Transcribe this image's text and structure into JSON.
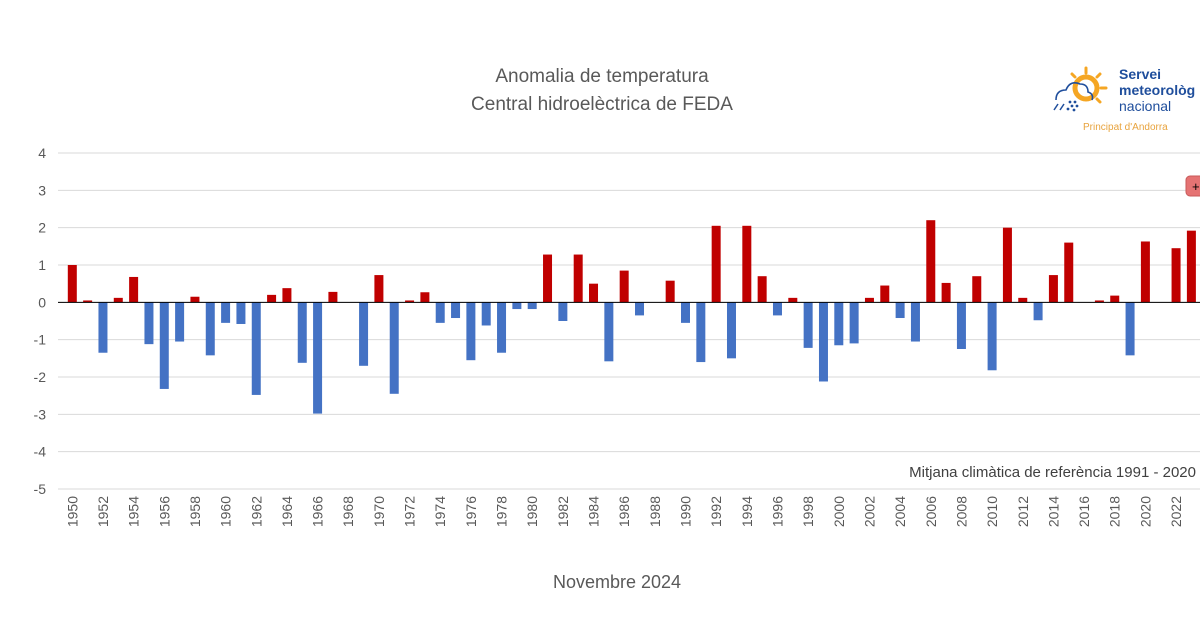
{
  "chart_data": {
    "type": "bar",
    "title": "Anomalia de temperatura",
    "subtitle": "Central hidroelèctrica de FEDA",
    "xlabel": "",
    "ylabel": "",
    "footer": "Novembre 2024",
    "note": "Mitjana climàtica de referència 1991 - 2020",
    "ylim": [
      -5,
      4
    ],
    "yticks": [
      "4",
      "3",
      "2",
      "1",
      "0",
      "-1",
      "-2",
      "-3",
      "-4",
      "-5"
    ],
    "grid": true,
    "colors": {
      "positive": "#C00000",
      "negative": "#4472C4",
      "grid": "#D9D9D9",
      "axis": "#000000"
    },
    "categories": [
      1950,
      1951,
      1952,
      1953,
      1954,
      1955,
      1956,
      1957,
      1958,
      1959,
      1960,
      1961,
      1962,
      1963,
      1964,
      1965,
      1966,
      1967,
      1968,
      1969,
      1970,
      1971,
      1972,
      1973,
      1974,
      1975,
      1976,
      1977,
      1978,
      1979,
      1980,
      1981,
      1982,
      1983,
      1984,
      1985,
      1986,
      1987,
      1988,
      1989,
      1990,
      1991,
      1992,
      1993,
      1994,
      1995,
      1996,
      1997,
      1998,
      1999,
      2000,
      2001,
      2002,
      2003,
      2004,
      2005,
      2006,
      2007,
      2008,
      2009,
      2010,
      2011,
      2012,
      2013,
      2014,
      2015,
      2016,
      2017,
      2018,
      2019,
      2020,
      2021,
      2022,
      2023
    ],
    "xtick_labels": [
      "1950",
      "1952",
      "1954",
      "1956",
      "1958",
      "1960",
      "1962",
      "1964",
      "1966",
      "1968",
      "1970",
      "1972",
      "1974",
      "1976",
      "1978",
      "1980",
      "1982",
      "1984",
      "1986",
      "1988",
      "1990",
      "1992",
      "1994",
      "1996",
      "1998",
      "2000",
      "2002",
      "2004",
      "2006",
      "2008",
      "2010",
      "2012",
      "2014",
      "2016",
      "2018",
      "2020",
      "2022"
    ],
    "values": [
      1.0,
      0.05,
      -1.35,
      0.12,
      0.68,
      -1.12,
      -2.32,
      -1.05,
      0.15,
      -1.42,
      -0.55,
      -0.58,
      -2.48,
      0.2,
      0.38,
      -1.62,
      -2.98,
      0.28,
      0.0,
      -1.7,
      0.73,
      -2.45,
      0.05,
      0.27,
      -0.55,
      -0.42,
      -1.55,
      -0.62,
      -1.35,
      -0.18,
      -0.18,
      1.28,
      -0.5,
      1.28,
      0.5,
      -1.58,
      0.85,
      -0.35,
      0.0,
      0.58,
      -0.55,
      -1.6,
      2.05,
      -1.5,
      2.05,
      0.7,
      -0.35,
      0.12,
      -1.22,
      -2.12,
      -1.15,
      -1.1,
      0.12,
      0.45,
      -0.42,
      -1.05,
      2.2,
      0.52,
      -1.25,
      0.7,
      -1.82,
      2.0,
      0.12,
      -0.48,
      0.73,
      1.6,
      0.0,
      0.05,
      0.18,
      -1.42,
      1.63,
      0.0,
      1.45,
      1.92
    ]
  },
  "logo": {
    "line1": "Servei",
    "line2": "meteorològ",
    "line3": "nacional",
    "line4": "Principat d'Andorra",
    "icon": "sun-cloud-rain-icon",
    "colors": {
      "sun": "#F5A623",
      "text": "#1F4E9C",
      "sub": "#E8A33D",
      "cloud": "#1F4E9C"
    }
  },
  "toolbar_button": {
    "label": "+",
    "color": "#E57373"
  }
}
